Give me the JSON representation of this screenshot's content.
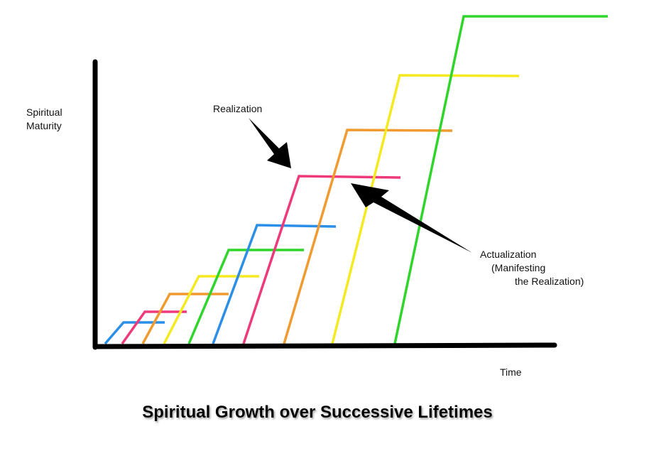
{
  "title": "Spiritual Growth over Successive Lifetimes",
  "y_axis_label": [
    "Spiritual",
    "Maturity"
  ],
  "x_axis_label": "Time",
  "annotations": {
    "realization": "Realization",
    "actualization": [
      "Actualization",
      "(Manifesting",
      "the Realization)"
    ]
  }
}
